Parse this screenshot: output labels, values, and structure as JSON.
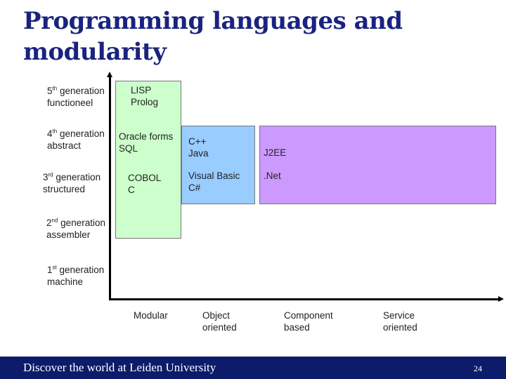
{
  "title": "Programming languages and modularity",
  "generations": [
    {
      "ord": "5",
      "sup": "th",
      "rest": " generation",
      "line2": "functioneel"
    },
    {
      "ord": "4",
      "sup": "th",
      "rest": " generation",
      "line2": "abstract"
    },
    {
      "ord": "3",
      "sup": "rd",
      "rest": " generation",
      "line2": "structured"
    },
    {
      "ord": "2",
      "sup": "nd",
      "rest": " generation",
      "line2": "assembler"
    },
    {
      "ord": "1",
      "sup": "st",
      "rest": " generation",
      "line2": "machine"
    }
  ],
  "boxes": {
    "green": {
      "color": "#ccffcc",
      "labels": [
        {
          "line1": "LISP",
          "line2": "Prolog"
        },
        {
          "line1": "Oracle forms",
          "line2": "SQL"
        },
        {
          "line1": "COBOL",
          "line2": "C"
        }
      ]
    },
    "blue": {
      "color": "#99ccff",
      "labels": [
        {
          "line1": "C++",
          "line2": "Java"
        },
        {
          "line1": "Visual Basic",
          "line2": "C#"
        }
      ]
    },
    "purple": {
      "color": "#cc99ff",
      "labels": [
        {
          "line1": "J2EE"
        },
        {
          "line1": ".Net"
        }
      ]
    }
  },
  "x_categories": [
    {
      "line1": "Modular"
    },
    {
      "line1": "Object",
      "line2": "oriented"
    },
    {
      "line1": "Component",
      "line2": "based"
    },
    {
      "line1": "Service",
      "line2": "oriented"
    }
  ],
  "footer": {
    "text": "Discover the world at Leiden University",
    "page": "24",
    "bg_color": "#0c1c6a"
  }
}
